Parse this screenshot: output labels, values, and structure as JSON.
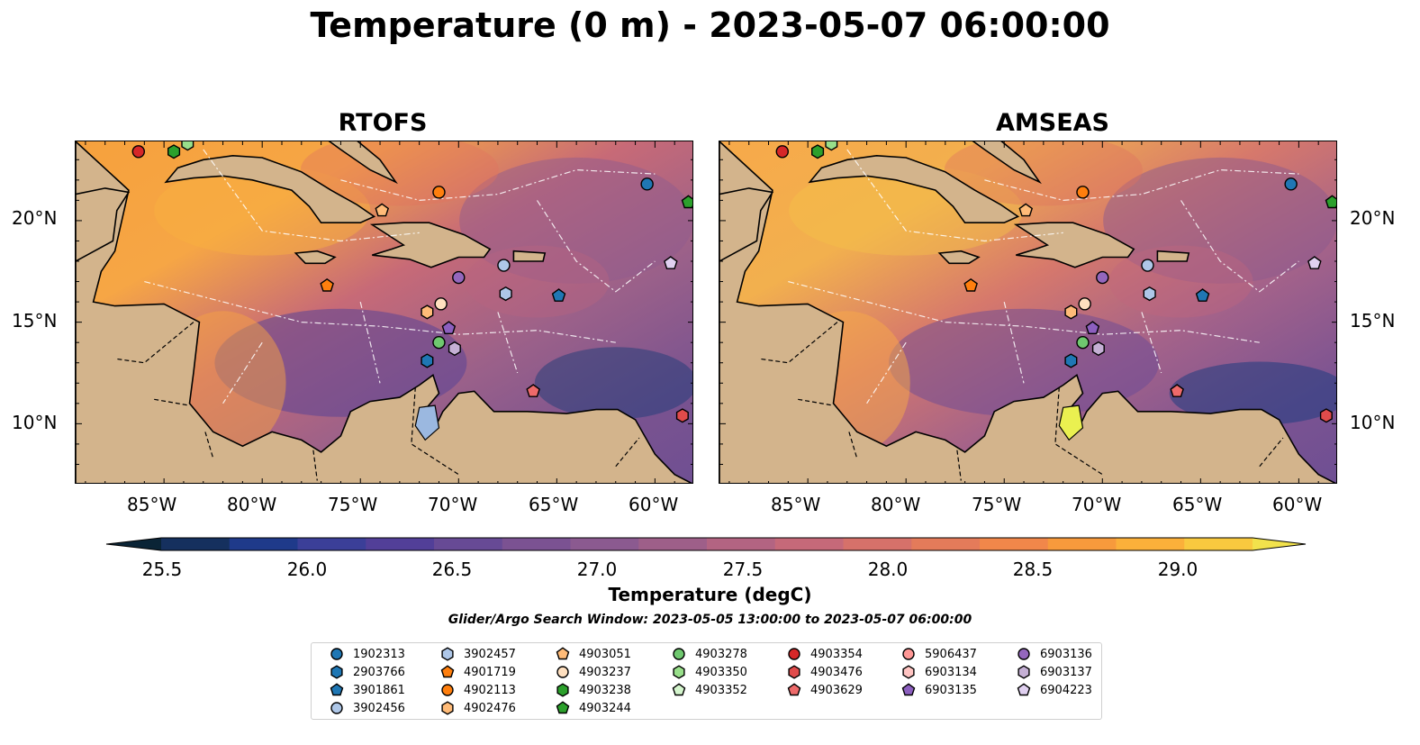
{
  "title": "Temperature (0 m) - 2023-05-07 06:00:00",
  "panels": [
    {
      "title": "RTOFS"
    },
    {
      "title": "AMSEAS"
    }
  ],
  "lon_ticks": [
    "85°W",
    "80°W",
    "75°W",
    "70°W",
    "65°W",
    "60°W"
  ],
  "lat_ticks": [
    "20°N",
    "15°N",
    "10°N"
  ],
  "extent": {
    "lon": [
      -89.5,
      -58.0
    ],
    "lat": [
      7.0,
      23.9
    ]
  },
  "colorbar": {
    "label": "Temperature (degC)",
    "ticks": [
      "25.5",
      "26.0",
      "26.5",
      "27.0",
      "27.5",
      "28.0",
      "28.5",
      "29.0"
    ],
    "range": [
      25.5,
      29.5
    ],
    "extend": "both",
    "colors": [
      "#0a2436",
      "#15305e",
      "#1f3a8a",
      "#3b3f98",
      "#523f98",
      "#674a95",
      "#7b5292",
      "#8b5a90",
      "#9e5f89",
      "#b36482",
      "#c66979",
      "#d6716a",
      "#e47b5a",
      "#f1874a",
      "#f79a3c",
      "#fbb03a",
      "#f9c93f",
      "#f2e24c"
    ]
  },
  "search_window": "Glider/Argo Search Window: 2023-05-05 13:00:00 to 2023-05-07 06:00:00",
  "legend": [
    {
      "id": "1902313",
      "marker": "circle",
      "color": "#1f77b4"
    },
    {
      "id": "2903766",
      "marker": "hexagon",
      "color": "#1f77b4"
    },
    {
      "id": "3901861",
      "marker": "pentagon",
      "color": "#1f77b4"
    },
    {
      "id": "3902456",
      "marker": "circle",
      "color": "#aec7e8"
    },
    {
      "id": "3902457",
      "marker": "hexagon",
      "color": "#aec7e8"
    },
    {
      "id": "4901719",
      "marker": "pentagon",
      "color": "#ff7f0e"
    },
    {
      "id": "4902113",
      "marker": "circle",
      "color": "#ff7f0e"
    },
    {
      "id": "4902476",
      "marker": "hexagon",
      "color": "#ffbb78"
    },
    {
      "id": "4903051",
      "marker": "pentagon",
      "color": "#ffbb78"
    },
    {
      "id": "4903237",
      "marker": "circle",
      "color": "#ffe0c0"
    },
    {
      "id": "4903238",
      "marker": "hexagon",
      "color": "#2ca02c"
    },
    {
      "id": "4903244",
      "marker": "pentagon",
      "color": "#2ca02c"
    },
    {
      "id": "4903278",
      "marker": "circle",
      "color": "#6fc86f"
    },
    {
      "id": "4903350",
      "marker": "hexagon",
      "color": "#98df8a"
    },
    {
      "id": "4903352",
      "marker": "pentagon",
      "color": "#d4f5cd"
    },
    {
      "id": "4903354",
      "marker": "circle",
      "color": "#d62728"
    },
    {
      "id": "4903476",
      "marker": "hexagon",
      "color": "#e04b4b"
    },
    {
      "id": "4903629",
      "marker": "pentagon",
      "color": "#ee6a6a"
    },
    {
      "id": "5906437",
      "marker": "circle",
      "color": "#ff9896"
    },
    {
      "id": "6903134",
      "marker": "hexagon",
      "color": "#ffc4c2"
    },
    {
      "id": "6903135",
      "marker": "pentagon",
      "color": "#8c5fbf"
    },
    {
      "id": "6903136",
      "marker": "circle",
      "color": "#9467bd"
    },
    {
      "id": "6903137",
      "marker": "hexagon",
      "color": "#c5b0d5"
    },
    {
      "id": "6904223",
      "marker": "pentagon",
      "color": "#e0d0f0"
    }
  ],
  "floats": [
    {
      "id": "4903354",
      "lon": -86.3,
      "lat": 23.4
    },
    {
      "id": "4903238",
      "lon": -84.5,
      "lat": 23.4
    },
    {
      "id": "4903350",
      "lon": -83.8,
      "lat": 23.8
    },
    {
      "id": "4902113",
      "lon": -71.0,
      "lat": 21.4
    },
    {
      "id": "1902313",
      "lon": -60.4,
      "lat": 21.8
    },
    {
      "id": "4903244",
      "lon": -58.3,
      "lat": 20.9
    },
    {
      "id": "4903051",
      "lon": -73.9,
      "lat": 20.5
    },
    {
      "id": "6904223",
      "lon": -59.2,
      "lat": 17.9
    },
    {
      "id": "3902456",
      "lon": -67.7,
      "lat": 17.8
    },
    {
      "id": "6903136",
      "lon": -70.0,
      "lat": 17.2
    },
    {
      "id": "3902457",
      "lon": -67.6,
      "lat": 16.4
    },
    {
      "id": "3901861",
      "lon": -64.9,
      "lat": 16.3
    },
    {
      "id": "4901719",
      "lon": -76.7,
      "lat": 16.8
    },
    {
      "id": "4903237",
      "lon": -70.9,
      "lat": 15.9
    },
    {
      "id": "4902476",
      "lon": -71.6,
      "lat": 15.5
    },
    {
      "id": "6903135",
      "lon": -70.5,
      "lat": 14.7
    },
    {
      "id": "4903278",
      "lon": -71.0,
      "lat": 14.0
    },
    {
      "id": "6903137",
      "lon": -70.2,
      "lat": 13.7
    },
    {
      "id": "2903766",
      "lon": -71.6,
      "lat": 13.1
    },
    {
      "id": "4903629",
      "lon": -66.2,
      "lat": 11.6
    },
    {
      "id": "4903476",
      "lon": -58.6,
      "lat": 10.4
    }
  ]
}
